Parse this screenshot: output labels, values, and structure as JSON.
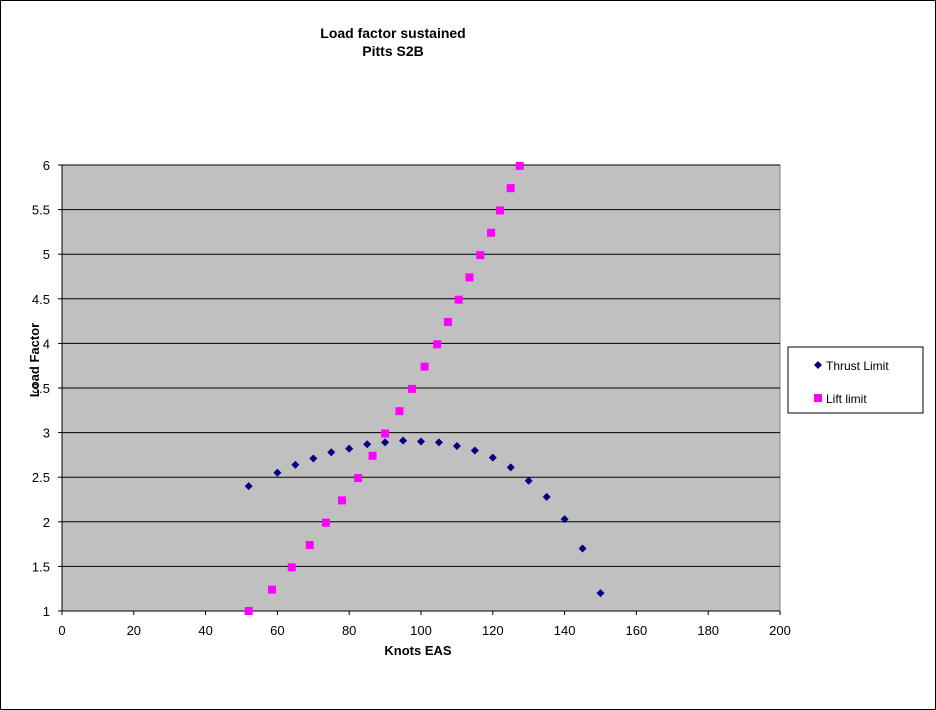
{
  "chart_data": {
    "type": "scatter",
    "title": "Load factor sustained",
    "subtitle": "Pitts S2B",
    "xlabel": "Knots EAS",
    "ylabel": "Load Factor",
    "xlim": [
      0,
      200
    ],
    "ylim": [
      1,
      6
    ],
    "x_ticks": [
      "0",
      "20",
      "40",
      "60",
      "80",
      "100",
      "120",
      "140",
      "160",
      "180",
      "200"
    ],
    "y_ticks": [
      "1",
      "1.5",
      "2",
      "2.5",
      "3",
      "3.5",
      "4",
      "4.5",
      "5",
      "5.5",
      "6"
    ],
    "grid": "horizontal",
    "plot_background": "#c0c0c0",
    "legend_position": "right",
    "series": [
      {
        "name": "Thrust  Limit",
        "marker": "diamond",
        "color": "#000080",
        "points": [
          [
            52,
            2.4
          ],
          [
            60,
            2.55
          ],
          [
            65,
            2.64
          ],
          [
            70,
            2.71
          ],
          [
            75,
            2.78
          ],
          [
            80,
            2.82
          ],
          [
            85,
            2.87
          ],
          [
            90,
            2.89
          ],
          [
            95,
            2.91
          ],
          [
            100,
            2.9
          ],
          [
            105,
            2.89
          ],
          [
            110,
            2.85
          ],
          [
            115,
            2.8
          ],
          [
            120,
            2.72
          ],
          [
            125,
            2.61
          ],
          [
            130,
            2.46
          ],
          [
            135,
            2.28
          ],
          [
            140,
            2.03
          ],
          [
            145,
            1.7
          ],
          [
            150,
            1.2
          ]
        ]
      },
      {
        "name": "Lift limit",
        "marker": "square",
        "color": "#ff00ff",
        "points": [
          [
            52,
            1.0
          ],
          [
            58.5,
            1.24
          ],
          [
            64,
            1.49
          ],
          [
            69,
            1.74
          ],
          [
            73.5,
            1.99
          ],
          [
            78,
            2.24
          ],
          [
            82.5,
            2.49
          ],
          [
            86.5,
            2.74
          ],
          [
            90,
            2.99
          ],
          [
            94,
            3.24
          ],
          [
            97.5,
            3.49
          ],
          [
            101,
            3.74
          ],
          [
            104.5,
            3.99
          ],
          [
            107.5,
            4.24
          ],
          [
            110.5,
            4.49
          ],
          [
            113.5,
            4.74
          ],
          [
            116.5,
            4.99
          ],
          [
            119.5,
            5.24
          ],
          [
            122,
            5.49
          ],
          [
            125,
            5.74
          ],
          [
            127.5,
            5.99
          ]
        ]
      }
    ]
  }
}
